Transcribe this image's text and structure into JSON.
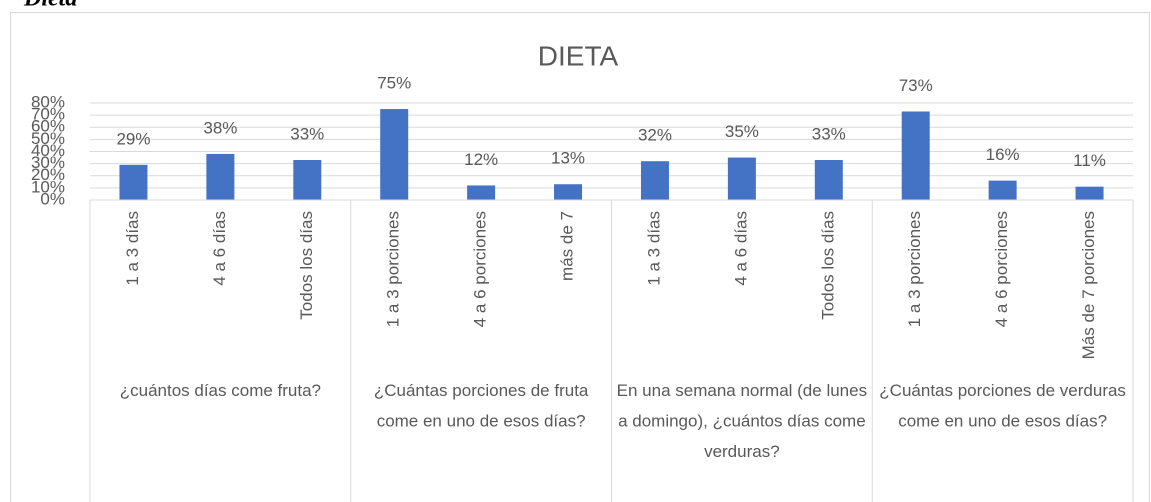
{
  "heading": "Dieta",
  "chart_data": {
    "type": "bar",
    "title": "DIETA",
    "color": "#4472c4",
    "groups": [
      {
        "label": "¿cuántos días come fruta?",
        "categories": [
          "1 a 3 días",
          "4 a 6 días",
          "Todos los días"
        ],
        "values": [
          29,
          38,
          33
        ],
        "value_labels": [
          "29%",
          "38%",
          "33%"
        ]
      },
      {
        "label": "¿Cuántas porciones de fruta come en uno de esos días?",
        "categories": [
          "1 a 3 porciones",
          "4 a 6 porciones",
          "más de 7"
        ],
        "values": [
          75,
          12,
          13
        ],
        "value_labels": [
          "75%",
          "12%",
          "13%"
        ]
      },
      {
        "label": "En una semana normal (de lunes a domingo), ¿cuántos días come verduras?",
        "categories": [
          "1 a 3 días",
          "4 a 6 días",
          "Todos los días"
        ],
        "values": [
          32,
          35,
          33
        ],
        "value_labels": [
          "32%",
          "35%",
          "33%"
        ]
      },
      {
        "label": "¿Cuántas porciones de verduras come en uno de esos días?",
        "categories": [
          "1 a 3 porciones",
          "4 a 6 porciones",
          "Más de 7 porciones"
        ],
        "values": [
          73,
          16,
          11
        ],
        "value_labels": [
          "73%",
          "16%",
          "11%"
        ]
      }
    ],
    "ylim": [
      0,
      80
    ],
    "yticks": [
      {
        "value": 0,
        "label": "0%"
      },
      {
        "value": 10,
        "label": "10%"
      },
      {
        "value": 20,
        "label": "20%"
      },
      {
        "value": 30,
        "label": "30%"
      },
      {
        "value": 40,
        "label": "40%"
      },
      {
        "value": 50,
        "label": "50%"
      },
      {
        "value": 60,
        "label": "60%"
      },
      {
        "value": 70,
        "label": "70%"
      },
      {
        "value": 80,
        "label": "80%"
      }
    ],
    "grid": true
  }
}
